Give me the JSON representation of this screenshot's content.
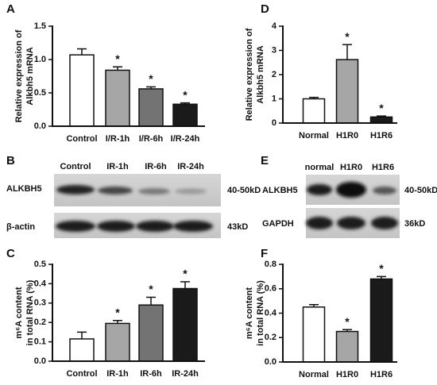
{
  "chart_data": [
    {
      "type": "bar",
      "panel": "A",
      "ylabel": [
        "Relative expression of",
        "Alkbh5 mRNA"
      ],
      "categories": [
        "Control",
        "I/R-1h",
        "I/R-6h",
        "I/R-24h"
      ],
      "values": [
        1.07,
        0.84,
        0.56,
        0.33
      ],
      "errors": [
        0.09,
        0.05,
        0.03,
        0.02
      ],
      "colors": [
        "#ffffff",
        "#a6a6a6",
        "#737373",
        "#1a1a1a"
      ],
      "significance": [
        null,
        "*",
        "*",
        "*"
      ],
      "ylim": [
        0,
        1.5
      ],
      "yticks": [
        {
          "value": 0,
          "label": "0.0"
        },
        0.5,
        {
          "value": 1,
          "label": "1.0"
        },
        1.5
      ]
    },
    {
      "type": "bar",
      "panel": "D",
      "ylabel": [
        "Relative expression of",
        "Alkbh5 mRNA"
      ],
      "categories": [
        "Normal",
        "H1R0",
        "H1R6"
      ],
      "values": [
        1.0,
        2.62,
        0.25
      ],
      "errors": [
        0.06,
        0.62,
        0.04
      ],
      "colors": [
        "#ffffff",
        "#a6a6a6",
        "#1a1a1a"
      ],
      "significance": [
        null,
        "*",
        "*"
      ],
      "ylim": [
        0,
        4
      ],
      "yticks": [
        0,
        1,
        2,
        3,
        4
      ]
    },
    {
      "type": "bar",
      "panel": "C",
      "ylabel": [
        "m⁶A content",
        "in total RNA (%)"
      ],
      "categories": [
        "Control",
        "IR-1h",
        "IR-6h",
        "IR-24h"
      ],
      "values": [
        0.115,
        0.195,
        0.29,
        0.375
      ],
      "errors": [
        0.035,
        0.015,
        0.04,
        0.035
      ],
      "colors": [
        "#ffffff",
        "#a6a6a6",
        "#737373",
        "#1a1a1a"
      ],
      "significance": [
        null,
        "*",
        "*",
        "*"
      ],
      "ylim": [
        0,
        0.5
      ],
      "yticks": [
        {
          "value": 0,
          "label": "0.0"
        },
        0.1,
        0.2,
        0.3,
        0.4,
        0.5
      ]
    },
    {
      "type": "bar",
      "panel": "F",
      "ylabel": [
        "m⁶A content",
        "in total RNA (%)"
      ],
      "categories": [
        "Normal",
        "H1R0",
        "H1R6"
      ],
      "values": [
        0.45,
        0.25,
        0.68
      ],
      "errors": [
        0.02,
        0.015,
        0.02
      ],
      "colors": [
        "#ffffff",
        "#a6a6a6",
        "#1a1a1a"
      ],
      "significance": [
        null,
        "*",
        "*"
      ],
      "ylim": [
        0,
        0.8
      ],
      "yticks": [
        {
          "value": 0,
          "label": "0.0"
        },
        0.2,
        0.4,
        0.6,
        0.8
      ]
    }
  ],
  "blots": [
    {
      "panel": "B",
      "lanes": [
        "Control",
        "IR-1h",
        "IR-6h",
        "IR-24h"
      ],
      "rows": [
        {
          "label": "ALKBH5",
          "size": "40-50kD"
        },
        {
          "label": "β-actin",
          "size": "43kD"
        }
      ]
    },
    {
      "panel": "E",
      "lanes": [
        "normal",
        "H1R0",
        "H1R6"
      ],
      "rows": [
        {
          "label": "ALKBH5",
          "size": "40-50kD"
        },
        {
          "label": "GAPDH",
          "size": "36kD"
        }
      ]
    }
  ]
}
